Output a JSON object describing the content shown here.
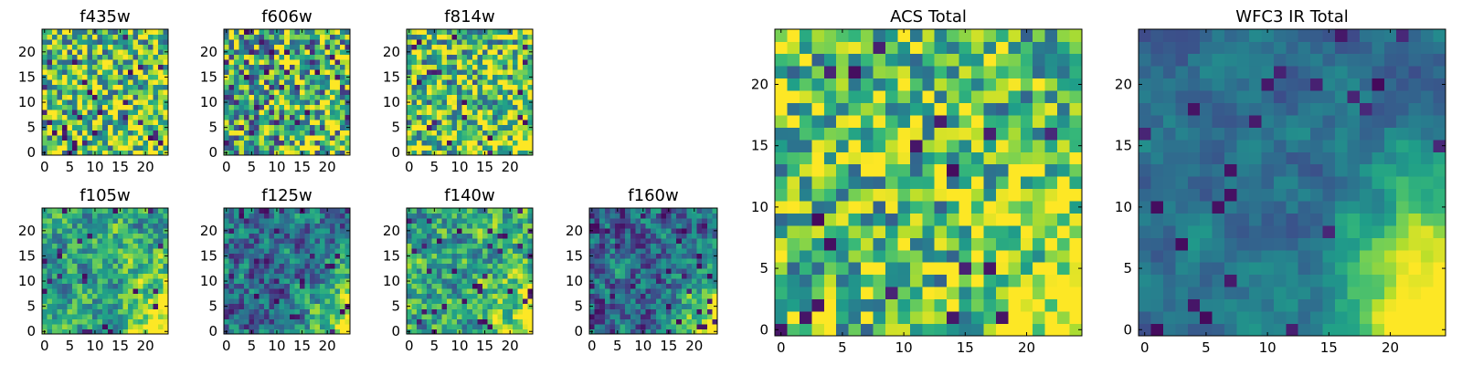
{
  "chart_data": [
    {
      "type": "heatmap",
      "title": "f435w",
      "xticks": [
        "0",
        "5",
        "10",
        "15",
        "20"
      ],
      "yticks": [
        "0",
        "5",
        "10",
        "15",
        "20"
      ],
      "xlim": [
        -0.5,
        24.5
      ],
      "ylim": [
        -0.5,
        24.5
      ],
      "colormap": "viridis",
      "rows": 25,
      "cols": 25,
      "pattern": "uniform noise",
      "grid": false
    },
    {
      "type": "heatmap",
      "title": "f606w",
      "xticks": [
        "0",
        "5",
        "10",
        "15",
        "20"
      ],
      "yticks": [
        "0",
        "5",
        "10",
        "15",
        "20"
      ],
      "xlim": [
        -0.5,
        24.5
      ],
      "ylim": [
        -0.5,
        24.5
      ],
      "colormap": "viridis",
      "rows": 25,
      "cols": 25,
      "pattern": "uniform noise",
      "grid": false
    },
    {
      "type": "heatmap",
      "title": "f814w",
      "xticks": [
        "0",
        "5",
        "10",
        "15",
        "20"
      ],
      "yticks": [
        "0",
        "5",
        "10",
        "15",
        "20"
      ],
      "xlim": [
        -0.5,
        24.5
      ],
      "ylim": [
        -0.5,
        24.5
      ],
      "colormap": "viridis",
      "rows": 25,
      "cols": 25,
      "pattern": "uniform noise, brighter lower-right",
      "grid": false
    },
    {
      "type": "heatmap",
      "title": "f105w",
      "xticks": [
        "0",
        "5",
        "10",
        "15",
        "20"
      ],
      "yticks": [
        "0",
        "5",
        "10",
        "15",
        "20"
      ],
      "xlim": [
        -0.5,
        24.5
      ],
      "ylim": [
        -0.5,
        24.5
      ],
      "colormap": "viridis",
      "rows": 25,
      "cols": 25,
      "pattern": "smooth noise, brighter lower-right",
      "grid": false
    },
    {
      "type": "heatmap",
      "title": "f125w",
      "xticks": [
        "0",
        "5",
        "10",
        "15",
        "20"
      ],
      "yticks": [
        "0",
        "5",
        "10",
        "15",
        "20"
      ],
      "xlim": [
        -0.5,
        24.5
      ],
      "ylim": [
        -0.5,
        24.5
      ],
      "colormap": "viridis",
      "rows": 25,
      "cols": 25,
      "pattern": "smooth noise, darker, bright lower-right edge",
      "grid": false
    },
    {
      "type": "heatmap",
      "title": "f140w",
      "xticks": [
        "0",
        "5",
        "10",
        "15",
        "20"
      ],
      "yticks": [
        "0",
        "5",
        "10",
        "15",
        "20"
      ],
      "xlim": [
        -0.5,
        24.5
      ],
      "ylim": [
        -0.5,
        24.5
      ],
      "colormap": "viridis",
      "rows": 25,
      "cols": 25,
      "pattern": "smooth noise, brighter lower-right",
      "grid": false
    },
    {
      "type": "heatmap",
      "title": "f160w",
      "xticks": [
        "0",
        "5",
        "10",
        "15",
        "20"
      ],
      "yticks": [
        "0",
        "5",
        "10",
        "15",
        "20"
      ],
      "xlim": [
        -0.5,
        24.5
      ],
      "ylim": [
        -0.5,
        24.5
      ],
      "colormap": "viridis",
      "rows": 25,
      "cols": 25,
      "pattern": "smooth noise, dark, bright lower-right edge",
      "grid": false
    },
    {
      "type": "heatmap",
      "title": "ACS Total",
      "xticks": [
        "0",
        "5",
        "10",
        "15",
        "20"
      ],
      "yticks": [
        "0",
        "5",
        "10",
        "15",
        "20"
      ],
      "xlim": [
        -0.5,
        24.5
      ],
      "ylim": [
        -0.5,
        24.5
      ],
      "colormap": "viridis",
      "rows": 25,
      "cols": 25,
      "pattern": "green-yellow noise, brighter lower-right",
      "grid": false
    },
    {
      "type": "heatmap",
      "title": "WFC3 IR Total",
      "xticks": [
        "0",
        "5",
        "10",
        "15",
        "20"
      ],
      "yticks": [
        "0",
        "5",
        "10",
        "15",
        "20"
      ],
      "xlim": [
        -0.5,
        24.5
      ],
      "ylim": [
        -0.5,
        24.5
      ],
      "colormap": "viridis",
      "rows": 25,
      "cols": 25,
      "pattern": "blue-teal smooth field, bright yellow lower-right",
      "grid": false
    }
  ]
}
